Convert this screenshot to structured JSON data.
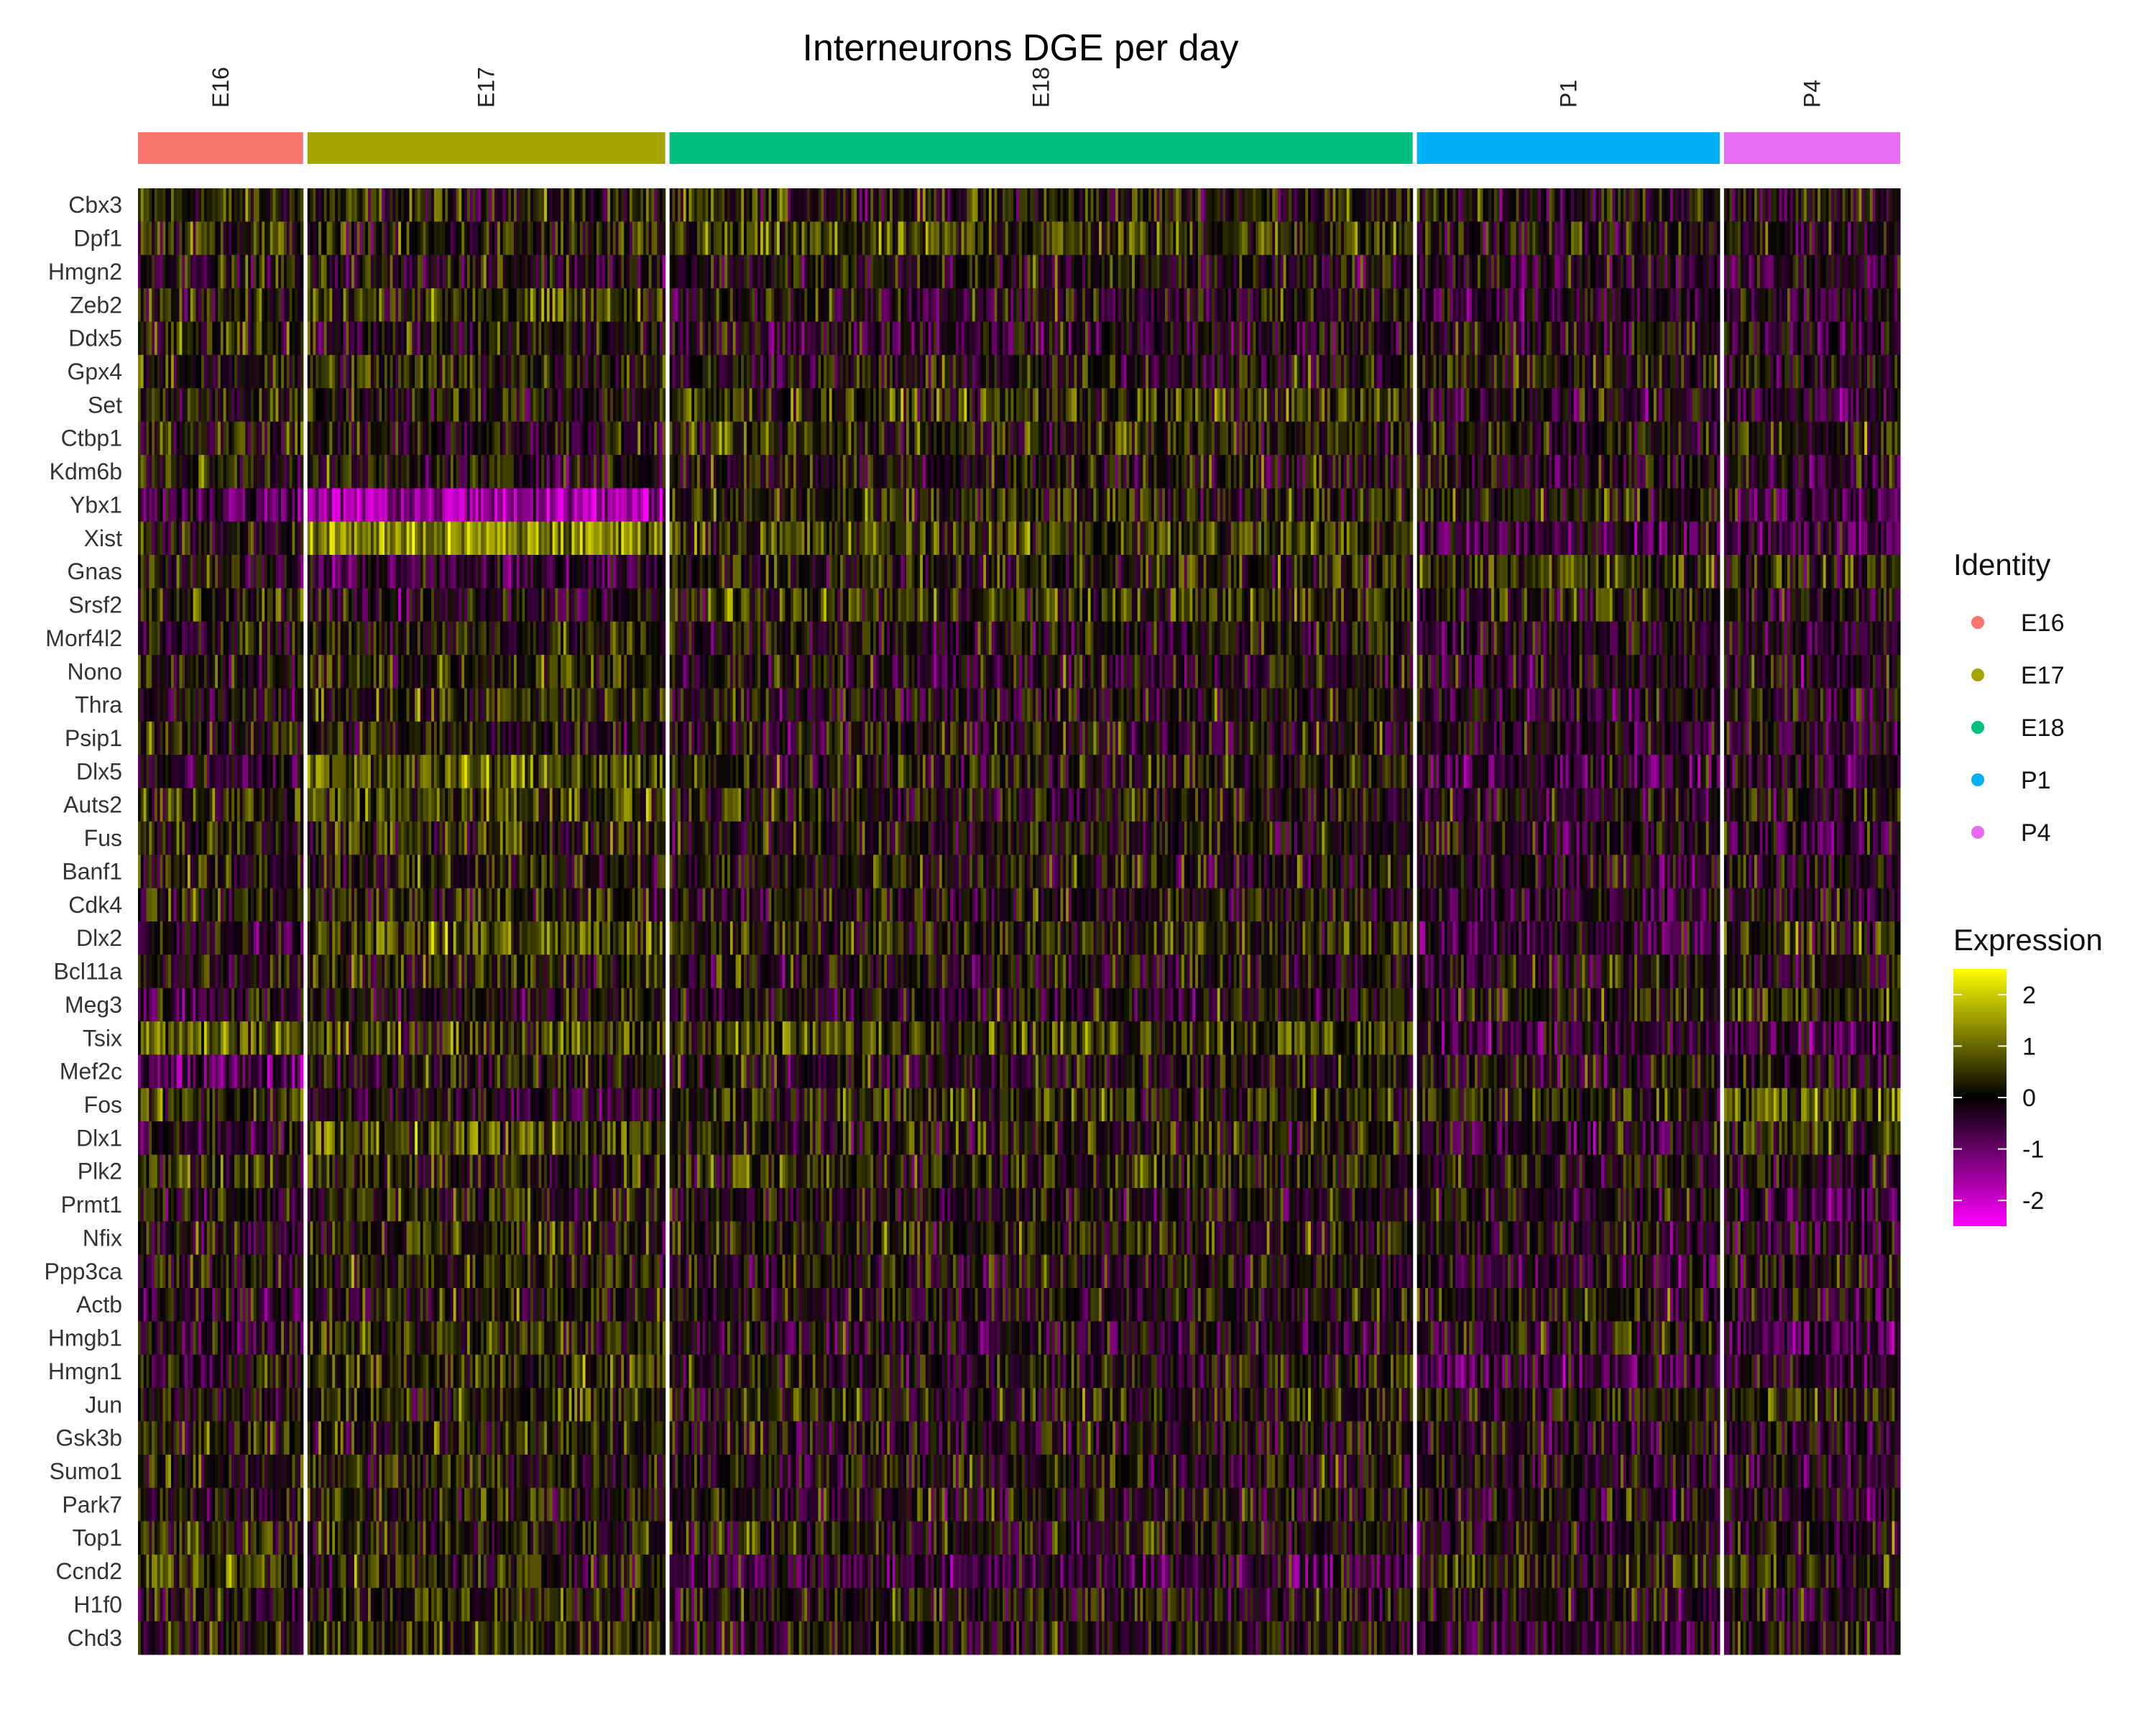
{
  "chart_data": {
    "type": "heatmap",
    "title": "Interneurons DGE per day",
    "groups": [
      {
        "name": "E16",
        "color": "#F8766D",
        "cells": 60
      },
      {
        "name": "E17",
        "color": "#A3A500",
        "cells": 130
      },
      {
        "name": "E18",
        "color": "#00BF7D",
        "cells": 270
      },
      {
        "name": "P1",
        "color": "#00B0F6",
        "cells": 110
      },
      {
        "name": "P4",
        "color": "#E76BF3",
        "cells": 64
      }
    ],
    "genes": [
      "Cbx3",
      "Dpf1",
      "Hmgn2",
      "Zeb2",
      "Ddx5",
      "Gpx4",
      "Set",
      "Ctbp1",
      "Kdm6b",
      "Ybx1",
      "Xist",
      "Gnas",
      "Srsf2",
      "Morf4l2",
      "Nono",
      "Thra",
      "Psip1",
      "Dlx5",
      "Auts2",
      "Fus",
      "Banf1",
      "Cdk4",
      "Dlx2",
      "Bcl11a",
      "Meg3",
      "Tsix",
      "Mef2c",
      "Fos",
      "Dlx1",
      "Plk2",
      "Prmt1",
      "Nfix",
      "Ppp3ca",
      "Actb",
      "Hmgb1",
      "Hmgn1",
      "Jun",
      "Gsk3b",
      "Sumo1",
      "Park7",
      "Top1",
      "Ccnd2",
      "H1f0",
      "Chd3"
    ],
    "mean_expression": {
      "Cbx3": [
        0.3,
        0.2,
        0.2,
        0.0,
        0.0
      ],
      "Dpf1": [
        0.4,
        0.1,
        0.5,
        0.0,
        -0.1
      ],
      "Hmgn2": [
        0.1,
        0.0,
        0.0,
        -0.2,
        -0.2
      ],
      "Zeb2": [
        0.0,
        0.5,
        0.0,
        -0.3,
        -0.4
      ],
      "Ddx5": [
        0.2,
        0.0,
        -0.2,
        0.0,
        -0.3
      ],
      "Gpx4": [
        0.1,
        0.3,
        0.0,
        0.2,
        0.0
      ],
      "Set": [
        0.2,
        0.1,
        0.4,
        -0.2,
        -0.4
      ],
      "Ctbp1": [
        0.2,
        0.0,
        0.3,
        0.0,
        0.2
      ],
      "Kdm6b": [
        0.3,
        0.0,
        0.1,
        -0.2,
        0.0
      ],
      "Ybx1": [
        -0.6,
        -1.5,
        0.2,
        0.2,
        -0.4
      ],
      "Xist": [
        0.0,
        1.3,
        0.5,
        -0.4,
        -0.6
      ],
      "Gnas": [
        0.0,
        -0.5,
        0.2,
        0.5,
        0.2
      ],
      "Srsf2": [
        0.3,
        -0.2,
        0.4,
        0.1,
        0.0
      ],
      "Morf4l2": [
        0.0,
        0.2,
        0.0,
        -0.1,
        -0.2
      ],
      "Nono": [
        0.1,
        0.3,
        0.0,
        -0.2,
        -0.3
      ],
      "Thra": [
        -0.2,
        0.3,
        0.0,
        -0.2,
        -0.1
      ],
      "Psip1": [
        0.2,
        0.1,
        0.0,
        -0.2,
        -0.2
      ],
      "Dlx5": [
        -0.3,
        0.8,
        0.1,
        -0.5,
        -0.3
      ],
      "Auts2": [
        0.3,
        0.6,
        0.1,
        -0.2,
        0.1
      ],
      "Fus": [
        0.2,
        0.3,
        0.1,
        -0.2,
        -0.2
      ],
      "Banf1": [
        0.2,
        0.2,
        0.0,
        -0.2,
        0.0
      ],
      "Cdk4": [
        0.2,
        0.2,
        0.0,
        -0.2,
        -0.2
      ],
      "Dlx2": [
        -0.3,
        0.7,
        0.3,
        -0.4,
        0.3
      ],
      "Bcl11a": [
        0.0,
        0.2,
        0.0,
        -0.1,
        0.0
      ],
      "Meg3": [
        -0.2,
        0.0,
        -0.1,
        0.2,
        0.5
      ],
      "Tsix": [
        0.9,
        0.5,
        0.6,
        -0.4,
        -0.7
      ],
      "Mef2c": [
        -0.9,
        0.1,
        0.0,
        0.0,
        -0.1
      ],
      "Fos": [
        0.4,
        -0.2,
        0.3,
        0.3,
        0.8
      ],
      "Dlx1": [
        -0.2,
        0.7,
        0.1,
        -0.3,
        0.4
      ],
      "Plk2": [
        0.4,
        0.2,
        0.3,
        0.0,
        0.0
      ],
      "Prmt1": [
        0.0,
        0.2,
        0.0,
        -0.1,
        -0.3
      ],
      "Nfix": [
        0.0,
        0.3,
        0.1,
        -0.1,
        -0.2
      ],
      "Ppp3ca": [
        0.1,
        0.2,
        0.0,
        -0.2,
        -0.1
      ],
      "Actb": [
        -0.3,
        0.1,
        0.0,
        0.1,
        -0.2
      ],
      "Hmgb1": [
        -0.2,
        0.3,
        -0.2,
        0.0,
        -0.6
      ],
      "Hmgn1": [
        0.0,
        0.4,
        0.0,
        -0.5,
        -0.2
      ],
      "Jun": [
        0.0,
        0.3,
        0.2,
        0.1,
        0.2
      ],
      "Gsk3b": [
        0.1,
        0.2,
        0.0,
        -0.1,
        -0.2
      ],
      "Sumo1": [
        0.1,
        0.2,
        0.0,
        -0.1,
        -0.2
      ],
      "Park7": [
        0.0,
        0.2,
        0.0,
        -0.1,
        -0.2
      ],
      "Top1": [
        0.3,
        0.2,
        0.1,
        -0.1,
        0.0
      ],
      "Ccnd2": [
        0.6,
        0.2,
        -0.4,
        0.2,
        0.4
      ],
      "H1f0": [
        0.1,
        0.3,
        0.0,
        -0.1,
        -0.1
      ],
      "Chd3": [
        0.1,
        0.3,
        0.0,
        -0.2,
        -0.1
      ]
    },
    "color_scale": {
      "title": "Expression",
      "stops": [
        {
          "value": -2.5,
          "color": "#FF00FF"
        },
        {
          "value": 0,
          "color": "#000000"
        },
        {
          "value": 2.5,
          "color": "#FFFF00"
        }
      ],
      "ticks": [
        "2",
        "1",
        "0",
        "-1",
        "-2"
      ],
      "tick_values": [
        2,
        1,
        0,
        -1,
        -2
      ]
    },
    "legend": {
      "title": "Identity",
      "placement": "right"
    }
  }
}
